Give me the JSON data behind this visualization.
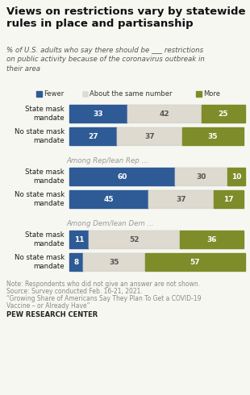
{
  "title": "Views on restrictions vary by statewide\nrules in place and partisanship",
  "subtitle": "% of U.S. adults who say there should be ___ restrictions\non public activity because of the coronavirus outbreak in\ntheir area",
  "legend_labels": [
    "Fewer",
    "About the same number",
    "More"
  ],
  "colors": [
    "#2E5B96",
    "#DEDAD0",
    "#7F8C2A"
  ],
  "groups": [
    {
      "section_label": null,
      "rows": [
        {
          "label": "State mask\nmandate",
          "values": [
            33,
            42,
            25
          ]
        },
        {
          "label": "No state mask\nmandate",
          "values": [
            27,
            37,
            35
          ]
        }
      ]
    },
    {
      "section_label": "Among Rep/lean Rep ...",
      "rows": [
        {
          "label": "State mask\nmandate",
          "values": [
            60,
            30,
            10
          ]
        },
        {
          "label": "No state mask\nmandate",
          "values": [
            45,
            37,
            17
          ]
        }
      ]
    },
    {
      "section_label": "Among Dem/lean Dem ...",
      "rows": [
        {
          "label": "State mask\nmandate",
          "values": [
            11,
            52,
            36
          ]
        },
        {
          "label": "No state mask\nmandate",
          "values": [
            8,
            35,
            57
          ]
        }
      ]
    }
  ],
  "note_lines": [
    "Note: Respondents who did not give an answer are not shown.",
    "Source: Survey conducted Feb. 16-21, 2021.",
    "“Growing Share of Americans Say They Plan To Get a COVID-19",
    "Vaccine – or Already Have”"
  ],
  "source_bold": "PEW RESEARCH CENTER",
  "bg_color": "#F7F7F2",
  "bar_color_fewer": "#2E5B96",
  "bar_color_same": "#DEDAD0",
  "bar_color_more": "#7F8C2A",
  "label_text_dark": "#666666",
  "note_color": "#888888"
}
